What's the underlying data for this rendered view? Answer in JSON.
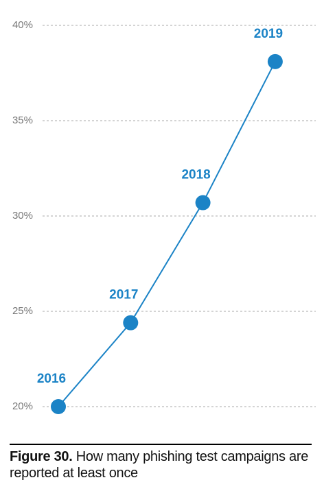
{
  "chart_data": {
    "type": "line",
    "categories": [
      "2016",
      "2017",
      "2018",
      "2019"
    ],
    "values": [
      20.0,
      24.4,
      30.7,
      38.1
    ],
    "color": "#1b83c6",
    "ylim": [
      20,
      40
    ],
    "yticks": [
      {
        "value": 20,
        "label": "20%"
      },
      {
        "value": 25,
        "label": "25%"
      },
      {
        "value": 30,
        "label": "30%"
      },
      {
        "value": 35,
        "label": "35%"
      },
      {
        "value": 40,
        "label": "40%"
      }
    ],
    "grid": true,
    "caption": {
      "label": "Figure 30.",
      "text": "How many phishing test campaigns are reported at least once"
    }
  }
}
